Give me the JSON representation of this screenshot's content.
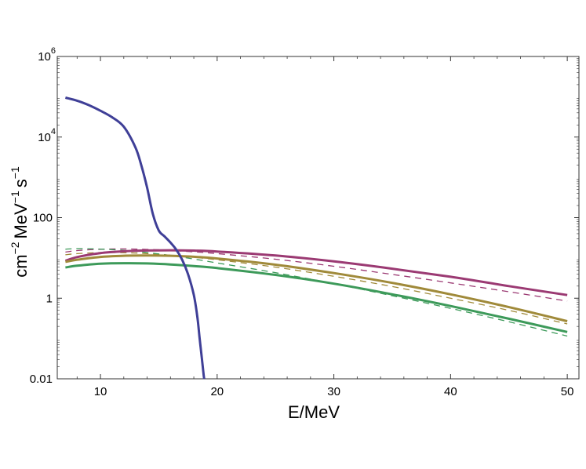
{
  "chart_data": {
    "type": "line",
    "title": "",
    "xlabel": "E/MeV",
    "ylabel": "cm⁻² MeV⁻¹ s⁻¹",
    "ylabel_parts": {
      "unit1": "cm",
      "exp1": "−2",
      "unit2": "MeV",
      "exp2": "−1",
      "unit3": "s",
      "exp3": "−1"
    },
    "yscale": "log",
    "xlim": [
      6.3,
      51
    ],
    "ylim": [
      0.01,
      1000000
    ],
    "grid": false,
    "legend": "none",
    "x_ticks": [
      {
        "value": 10,
        "label": "10"
      },
      {
        "value": 20,
        "label": "20"
      },
      {
        "value": 30,
        "label": "30"
      },
      {
        "value": 40,
        "label": "40"
      },
      {
        "value": 50,
        "label": "50"
      }
    ],
    "y_ticks": [
      {
        "value": 0.01,
        "label": "0.01"
      },
      {
        "value": 1,
        "label": "1"
      },
      {
        "value": 100,
        "label": "100"
      },
      {
        "value": 10000,
        "label": "10",
        "exp": "4"
      },
      {
        "value": 1000000,
        "label": "10",
        "exp": "6"
      }
    ],
    "series": [
      {
        "color": "#3f3f97",
        "style": "solid",
        "x": [
          7,
          8,
          9,
          10,
          11,
          12,
          13,
          13.5,
          14,
          14.5,
          15,
          15.5,
          16,
          16.5,
          17,
          17.5,
          18,
          18.3,
          18.5,
          18.7,
          18.85,
          18.9
        ],
        "y": [
          95000,
          80000,
          62000,
          45000,
          31000,
          18000,
          5500,
          2000,
          550,
          120,
          48,
          34,
          24,
          16,
          9,
          4,
          1.2,
          0.35,
          0.1,
          0.03,
          0.012,
          0.009
        ]
      },
      {
        "color": "#9b3a73",
        "style": "solid",
        "x": [
          7,
          8,
          10,
          12,
          14,
          16,
          18,
          20,
          25,
          30,
          35,
          40,
          45,
          50
        ],
        "y": [
          8.5,
          10.5,
          13.2,
          14.6,
          15.3,
          15.5,
          15.2,
          14.4,
          11.5,
          8.2,
          5.4,
          3.4,
          2.0,
          1.2
        ]
      },
      {
        "color": "#9b3a73",
        "style": "dashed",
        "x": [
          7,
          8,
          10,
          12,
          14,
          16,
          18,
          20,
          25,
          30,
          35,
          40,
          45,
          50
        ],
        "y": [
          14,
          15.2,
          16.4,
          16.7,
          16.3,
          15.4,
          14.2,
          12.8,
          9.3,
          6.2,
          3.9,
          2.4,
          1.45,
          0.85
        ]
      },
      {
        "color": "#a08a3a",
        "style": "solid",
        "x": [
          7,
          8,
          10,
          12,
          14,
          16,
          18,
          20,
          25,
          30,
          35,
          40,
          45,
          50
        ],
        "y": [
          8.0,
          9.0,
          10.6,
          11.3,
          11.5,
          11.3,
          10.7,
          9.7,
          6.8,
          4.2,
          2.4,
          1.25,
          0.6,
          0.27
        ]
      },
      {
        "color": "#a08a3a",
        "style": "dashed",
        "x": [
          7,
          8,
          10,
          12,
          14,
          16,
          18,
          20,
          25,
          30,
          35,
          40,
          45,
          50
        ],
        "y": [
          12,
          12.8,
          13.6,
          13.5,
          12.8,
          11.7,
          10.4,
          9.0,
          5.9,
          3.5,
          1.95,
          1.0,
          0.5,
          0.23
        ]
      },
      {
        "color": "#3d9a5a",
        "style": "solid",
        "x": [
          7,
          8,
          10,
          12,
          14,
          16,
          18,
          20,
          25,
          30,
          35,
          40,
          45,
          50
        ],
        "y": [
          5.8,
          6.4,
          7.2,
          7.4,
          7.3,
          6.9,
          6.3,
          5.6,
          3.8,
          2.3,
          1.25,
          0.64,
          0.31,
          0.145
        ]
      },
      {
        "color": "#3d9a5a",
        "style": "dashed",
        "x": [
          7,
          8,
          10,
          12,
          14,
          16,
          18,
          20,
          25,
          30,
          35,
          40,
          45,
          50
        ],
        "y": [
          16.5,
          17.0,
          16.6,
          15.4,
          13.6,
          11.5,
          9.4,
          7.5,
          4.3,
          2.3,
          1.15,
          0.56,
          0.26,
          0.115
        ]
      }
    ]
  }
}
